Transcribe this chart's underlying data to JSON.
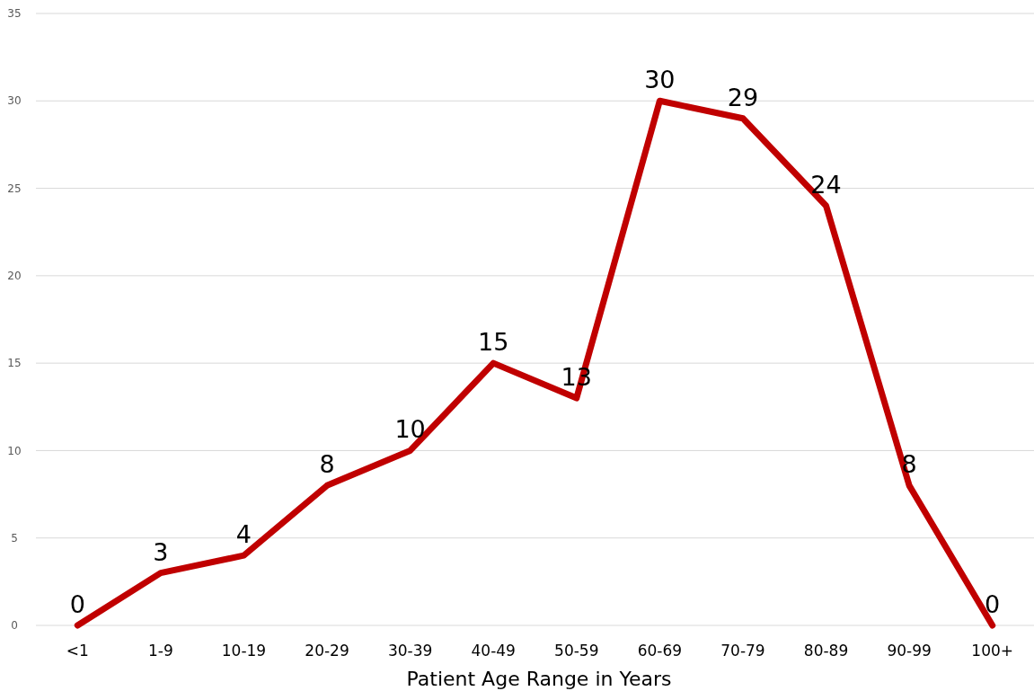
{
  "chart_data": {
    "type": "line",
    "xlabel": "Patient Age Range in Years",
    "categories": [
      "<1",
      "1-9",
      "10-19",
      "20-29",
      "30-39",
      "40-49",
      "50-59",
      "60-69",
      "70-79",
      "80-89",
      "90-99",
      "100+"
    ],
    "series": [
      {
        "color": "#c00000",
        "values": [
          0,
          3,
          4,
          8,
          10,
          15,
          13,
          30,
          29,
          24,
          8,
          0
        ]
      }
    ],
    "ylim": [
      0,
      35
    ],
    "yticks": [
      0,
      5,
      10,
      15,
      20,
      25,
      30,
      35
    ],
    "grid": "y",
    "data_labels": true,
    "marker": "none",
    "line_style": "solid"
  }
}
